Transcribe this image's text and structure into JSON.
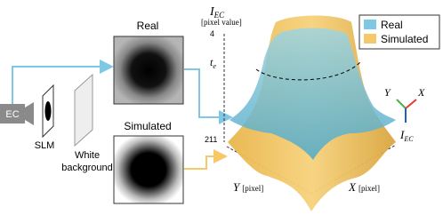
{
  "setup": {
    "camera_label": "EC",
    "slm_label": "SLM",
    "background_label": [
      "White",
      "background"
    ]
  },
  "images": {
    "real_title": "Real",
    "simulated_title": "Simulated"
  },
  "plot": {
    "z_axis_symbol": "I",
    "z_axis_subscript": "EC",
    "z_axis_unit": "[pixel value]",
    "tick_top": "4",
    "threshold_symbol": "t",
    "threshold_subscript": "e",
    "tick_bottom": "211",
    "y_axis_label": "Y",
    "y_axis_unit": "[pixel]",
    "x_axis_label": "X",
    "x_axis_unit": "[pixel]"
  },
  "legend": [
    {
      "name": "Real",
      "color": "#7ec8e3"
    },
    {
      "name": "Simulated",
      "color": "#f5c96a"
    }
  ],
  "triad": {
    "y_label": "Y",
    "x_label": "X",
    "z_symbol": "I",
    "z_subscript": "EC"
  }
}
